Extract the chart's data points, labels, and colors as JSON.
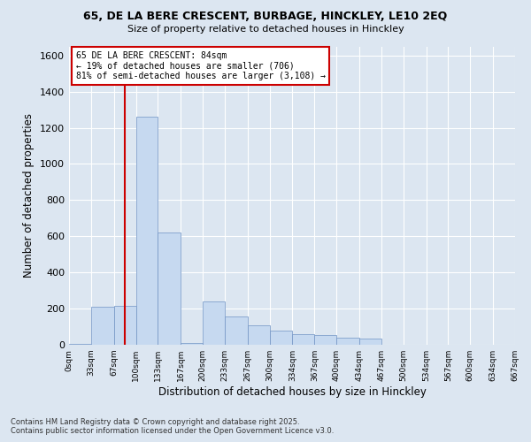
{
  "title1": "65, DE LA BERE CRESCENT, BURBAGE, HINCKLEY, LE10 2EQ",
  "title2": "Size of property relative to detached houses in Hinckley",
  "xlabel": "Distribution of detached houses by size in Hinckley",
  "ylabel": "Number of detached properties",
  "annotation_line1": "65 DE LA BERE CRESCENT: 84sqm",
  "annotation_line2": "← 19% of detached houses are smaller (706)",
  "annotation_line3": "81% of semi-detached houses are larger (3,108) →",
  "property_size": 84,
  "bin_edges": [
    0,
    33,
    67,
    100,
    133,
    167,
    200,
    233,
    267,
    300,
    334,
    367,
    400,
    434,
    467,
    500,
    534,
    567,
    600,
    634,
    667
  ],
  "bin_labels": [
    "0sqm",
    "33sqm",
    "67sqm",
    "100sqm",
    "133sqm",
    "167sqm",
    "200sqm",
    "233sqm",
    "267sqm",
    "300sqm",
    "334sqm",
    "367sqm",
    "400sqm",
    "434sqm",
    "467sqm",
    "500sqm",
    "534sqm",
    "567sqm",
    "600sqm",
    "634sqm",
    "667sqm"
  ],
  "bar_values": [
    5,
    210,
    215,
    1260,
    620,
    10,
    240,
    155,
    110,
    80,
    60,
    55,
    40,
    35,
    0,
    0,
    0,
    0,
    0,
    0
  ],
  "bar_color": "#c6d9f0",
  "bar_edge_color": "#7093c4",
  "vline_color": "#cc0000",
  "vline_x": 84,
  "background_color": "#dce6f1",
  "annotation_box_color": "#ffffff",
  "annotation_box_edge": "#cc0000",
  "ylim": [
    0,
    1650
  ],
  "yticks": [
    0,
    200,
    400,
    600,
    800,
    1000,
    1200,
    1400,
    1600
  ],
  "footer_line1": "Contains HM Land Registry data © Crown copyright and database right 2025.",
  "footer_line2": "Contains public sector information licensed under the Open Government Licence v3.0."
}
